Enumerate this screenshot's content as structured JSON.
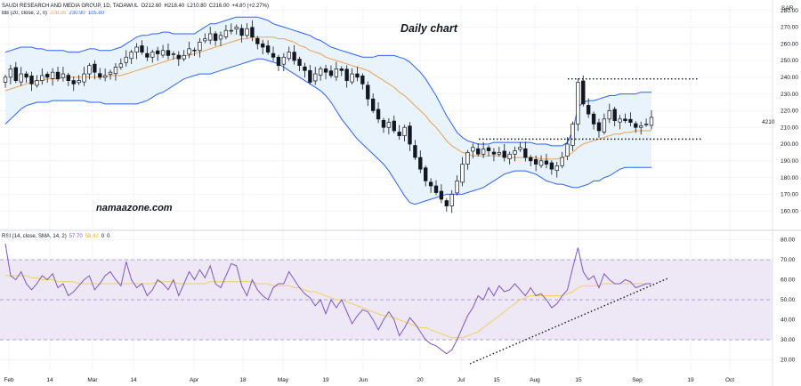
{
  "header": {
    "symbol": "SAUDI RESEARCH AND MEDIA GROUP, 1D, TADAWUL",
    "open": "O212.60",
    "high": "H218.40",
    "low": "L210.80",
    "close": "C216.00",
    "change": "+4.80 (+2.27%)",
    "bb_label": "BB (20, close, 2, 0)",
    "bb_basis": "208.35",
    "bb_upper": "230.90",
    "bb_lower": "185.80",
    "rsi_label": "RSI (14, close, SMA, 14, 2)",
    "rsi_value": "57.70",
    "rsi_sma": "58.42",
    "rsi_extra1": "0",
    "rsi_extra2": "0"
  },
  "currency": "SAR",
  "annotations": {
    "title": "Daily chart",
    "watermark": "namaazone.com",
    "last_price_label": "4210"
  },
  "colors": {
    "up": "#131722",
    "down": "#131722",
    "bb_basis": "#f0a050",
    "bb_band": "#2962ff",
    "bb_fill": "#e8f3fc",
    "rsi_line": "#7e57c2",
    "rsi_sma": "#f0d060",
    "rsi_fill": "#ede7f6",
    "grid": "#f0f3fa"
  },
  "chart_data": [
    {
      "type": "candlestick",
      "title": "Daily chart",
      "ylim": [
        150,
        283
      ],
      "y_ticks": [
        160,
        170,
        180,
        190,
        200,
        210,
        220,
        230,
        240,
        250,
        260,
        270,
        280
      ],
      "x_ticks": [
        "Feb",
        "14",
        "Mar",
        "14",
        "Apr",
        "18",
        "May",
        "19",
        "Jun",
        "20",
        "Jul",
        "15",
        "Aug",
        "15",
        "Sep",
        "19",
        "Oct"
      ],
      "closes": [
        240,
        245,
        238,
        242,
        240,
        236,
        238,
        241,
        240,
        243,
        239,
        242,
        238,
        236,
        238,
        242,
        247,
        243,
        240,
        241,
        243,
        246,
        248,
        252,
        255,
        258,
        255,
        252,
        255,
        254,
        256,
        253,
        254,
        251,
        253,
        257,
        256,
        261,
        263,
        266,
        262,
        265,
        268,
        268,
        270,
        265,
        269,
        264,
        260,
        258,
        255,
        252,
        247,
        252,
        255,
        250,
        247,
        244,
        237,
        242,
        245,
        243,
        241,
        245,
        244,
        238,
        242,
        240,
        236,
        227,
        220,
        215,
        210,
        213,
        208,
        205,
        210,
        200,
        192,
        185,
        178,
        175,
        171,
        167,
        163,
        170,
        178,
        188,
        195,
        198,
        194,
        197,
        196,
        194,
        195,
        192,
        194,
        196,
        198,
        192,
        190,
        188,
        190,
        188,
        185,
        187,
        192,
        200,
        212,
        237,
        224,
        218,
        212,
        208,
        215,
        220,
        214,
        215,
        214,
        213,
        210,
        211,
        212,
        216
      ],
      "bb_upper": [
        255,
        256,
        257,
        258,
        258,
        258,
        257,
        257,
        256,
        256,
        256,
        256,
        255,
        255,
        255,
        256,
        257,
        257,
        256,
        256,
        256,
        257,
        258,
        260,
        262,
        264,
        265,
        265,
        266,
        266,
        267,
        267,
        266,
        266,
        266,
        266,
        266,
        268,
        270,
        272,
        272,
        273,
        274,
        275,
        276,
        276,
        276,
        276,
        276,
        275,
        274,
        272,
        271,
        270,
        269,
        268,
        267,
        266,
        265,
        263,
        262,
        260,
        258,
        257,
        256,
        255,
        254,
        253,
        252,
        252,
        252,
        253,
        253,
        253,
        253,
        252,
        251,
        249,
        246,
        243,
        239,
        234,
        229,
        223,
        217,
        212,
        207,
        204,
        202,
        201,
        200,
        200,
        200,
        201,
        201,
        201,
        201,
        201,
        201,
        201,
        201,
        200,
        200,
        200,
        199,
        199,
        199,
        201,
        208,
        222,
        225,
        226,
        226,
        227,
        228,
        229,
        229,
        230,
        230,
        230,
        230,
        231,
        231,
        231
      ],
      "bb_basis": [
        232,
        233,
        234,
        235,
        236,
        237,
        238,
        238,
        239,
        239,
        239,
        240,
        240,
        240,
        240,
        240,
        240,
        240,
        240,
        240,
        241,
        241,
        241,
        242,
        243,
        244,
        245,
        246,
        247,
        248,
        249,
        250,
        251,
        252,
        253,
        253,
        254,
        255,
        256,
        257,
        258,
        259,
        260,
        261,
        262,
        263,
        263,
        264,
        264,
        264,
        264,
        264,
        263,
        263,
        262,
        261,
        259,
        258,
        256,
        255,
        254,
        252,
        251,
        250,
        249,
        248,
        247,
        246,
        245,
        244,
        242,
        240,
        238,
        236,
        234,
        231,
        229,
        226,
        223,
        220,
        217,
        213,
        210,
        206,
        202,
        199,
        197,
        195,
        194,
        193,
        193,
        193,
        193,
        193,
        193,
        193,
        192,
        192,
        192,
        192,
        192,
        192,
        191,
        191,
        191,
        191,
        192,
        193,
        195,
        198,
        200,
        201,
        202,
        203,
        204,
        205,
        206,
        206,
        207,
        207,
        208,
        208,
        208,
        208
      ],
      "bb_lower": [
        212,
        215,
        218,
        221,
        223,
        224,
        225,
        225,
        225,
        226,
        226,
        226,
        226,
        226,
        226,
        226,
        225,
        225,
        225,
        224,
        224,
        224,
        224,
        224,
        224,
        224,
        225,
        226,
        228,
        230,
        231,
        233,
        235,
        237,
        239,
        240,
        241,
        242,
        242,
        242,
        243,
        244,
        245,
        246,
        247,
        248,
        249,
        250,
        251,
        251,
        250,
        249,
        248,
        246,
        244,
        242,
        240,
        238,
        236,
        234,
        232,
        229,
        225,
        220,
        215,
        211,
        207,
        203,
        200,
        197,
        194,
        191,
        188,
        184,
        179,
        174,
        169,
        165,
        164,
        165,
        166,
        167,
        168,
        169,
        170,
        170,
        170,
        170,
        171,
        172,
        173,
        174,
        176,
        178,
        180,
        182,
        183,
        184,
        184,
        184,
        183,
        182,
        180,
        178,
        177,
        176,
        176,
        175,
        174,
        174,
        175,
        176,
        178,
        178,
        180,
        181,
        183,
        185,
        186,
        186,
        186,
        186,
        186,
        186
      ]
    },
    {
      "type": "line",
      "title": "RSI (14, close, SMA, 14, 2)",
      "ylim": [
        14,
        82
      ],
      "y_ticks": [
        20,
        30,
        40,
        50,
        60,
        70,
        80
      ],
      "band": [
        30,
        70
      ],
      "series": [
        {
          "name": "RSI",
          "values": [
            78,
            62,
            60,
            64,
            58,
            55,
            58,
            62,
            60,
            63,
            56,
            58,
            52,
            54,
            57,
            60,
            62,
            55,
            58,
            62,
            64,
            60,
            57,
            69,
            60,
            56,
            58,
            52,
            55,
            60,
            58,
            55,
            60,
            52,
            58,
            64,
            60,
            65,
            61,
            67,
            58,
            56,
            62,
            68,
            67,
            57,
            52,
            60,
            55,
            52,
            50,
            56,
            58,
            58,
            64,
            60,
            56,
            53,
            51,
            47,
            50,
            43,
            50,
            46,
            50,
            44,
            38,
            42,
            45,
            44,
            40,
            35,
            40,
            44,
            40,
            32,
            36,
            41,
            38,
            34,
            30,
            28,
            27,
            25,
            23,
            25,
            30,
            36,
            42,
            46,
            52,
            50,
            56,
            52,
            57,
            54,
            55,
            58,
            55,
            52,
            56,
            52,
            53,
            50,
            46,
            48,
            52,
            55,
            66,
            76,
            64,
            60,
            62,
            56,
            63,
            60,
            58,
            58,
            60,
            59,
            56,
            57,
            58,
            58
          ]
        },
        {
          "name": "RSI-based MA",
          "values": [
            62,
            62,
            62,
            62,
            62,
            61,
            61,
            60,
            60,
            60,
            59,
            59,
            59,
            59,
            58,
            58,
            58,
            58,
            58,
            58,
            58,
            58,
            58,
            58,
            58,
            58,
            58,
            58,
            58,
            59,
            59,
            59,
            59,
            58,
            58,
            58,
            58,
            58,
            58,
            59,
            59,
            59,
            59,
            59,
            59,
            59,
            59,
            59,
            58,
            58,
            58,
            57,
            57,
            57,
            57,
            56,
            56,
            55,
            54,
            54,
            53,
            52,
            51,
            50,
            50,
            49,
            48,
            47,
            46,
            45,
            44,
            43,
            42,
            42,
            41,
            40,
            39,
            38,
            37,
            36,
            36,
            35,
            34,
            33,
            32,
            31,
            31,
            31,
            32,
            33,
            34,
            36,
            38,
            40,
            42,
            44,
            46,
            48,
            50,
            51,
            52,
            52,
            52,
            52,
            52,
            52,
            52,
            53,
            54,
            56,
            57,
            57,
            57,
            57,
            58,
            58,
            58,
            58,
            58,
            58,
            58,
            58,
            58,
            58
          ]
        }
      ]
    }
  ]
}
